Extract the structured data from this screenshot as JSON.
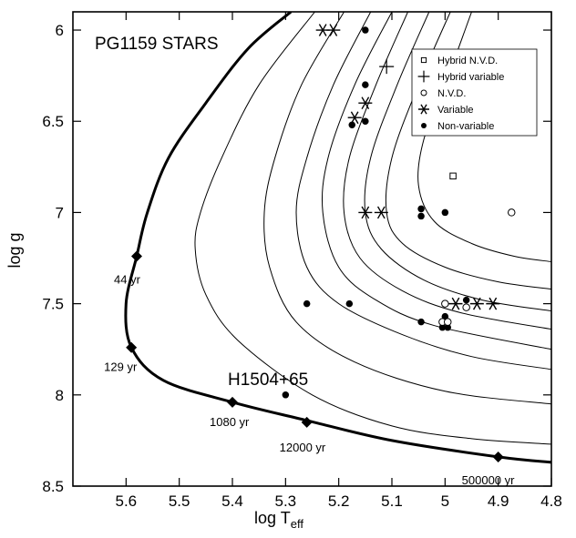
{
  "chart_data": {
    "type": "scatter",
    "title": "PG1159 STARS",
    "xlabel": "log T",
    "xlabel_sub": "eff",
    "ylabel": "log g",
    "xlim": [
      5.7,
      4.8
    ],
    "ylim": [
      5.9,
      8.5
    ],
    "x_inverted": true,
    "y_inverted": true,
    "grid": false,
    "legend_position": "top-right",
    "xticks": [
      5.6,
      5.5,
      5.4,
      5.3,
      5.2,
      5.1,
      5.0,
      4.9,
      4.8
    ],
    "xtick_labels": [
      "5.6",
      "5.5",
      "5.4",
      "5.3",
      "5.2",
      "5.1",
      "5",
      "4.9",
      "4.8"
    ],
    "yticks": [
      6.0,
      6.5,
      7.0,
      7.5,
      8.0,
      8.5
    ],
    "ytick_labels": [
      "6",
      "6.5",
      "7",
      "7.5",
      "8",
      "8.5"
    ],
    "legend": [
      {
        "label": "Hybrid N.V.D.",
        "marker": "open-square"
      },
      {
        "label": "Hybrid variable",
        "marker": "plus"
      },
      {
        "label": "N.V.D.",
        "marker": "open-circle"
      },
      {
        "label": "Variable",
        "marker": "asterisk"
      },
      {
        "label": "Non-variable",
        "marker": "filled-circle"
      }
    ],
    "series": [
      {
        "marker": "filled-circle",
        "points": [
          [
            5.15,
            6.0
          ],
          [
            5.15,
            6.3
          ],
          [
            5.15,
            6.5
          ],
          [
            5.175,
            6.52
          ],
          [
            5.045,
            6.98
          ],
          [
            5.045,
            7.02
          ],
          [
            5.0,
            7.0
          ],
          [
            5.26,
            7.5
          ],
          [
            5.18,
            7.5
          ],
          [
            4.96,
            7.48
          ],
          [
            5.045,
            7.6
          ],
          [
            5.0,
            7.57
          ],
          [
            5.005,
            7.63
          ],
          [
            4.995,
            7.63
          ],
          [
            5.3,
            8.0
          ]
        ]
      },
      {
        "marker": "asterisk",
        "points": [
          [
            5.23,
            6.0
          ],
          [
            5.21,
            6.0
          ],
          [
            5.15,
            6.4
          ],
          [
            5.17,
            6.48
          ],
          [
            5.15,
            7.0
          ],
          [
            5.12,
            7.0
          ],
          [
            4.98,
            7.5
          ],
          [
            4.94,
            7.5
          ],
          [
            4.91,
            7.5
          ]
        ]
      },
      {
        "marker": "open-circle",
        "points": [
          [
            4.875,
            7.0
          ],
          [
            5.0,
            7.5
          ],
          [
            4.96,
            7.52
          ],
          [
            5.005,
            7.6
          ],
          [
            4.995,
            7.6
          ]
        ]
      },
      {
        "marker": "plus",
        "points": [
          [
            5.11,
            6.2
          ]
        ]
      },
      {
        "marker": "open-square",
        "points": [
          [
            4.985,
            6.8
          ]
        ]
      }
    ],
    "evolutionary_track": {
      "points": [
        [
          5.29,
          5.9
        ],
        [
          5.37,
          6.1
        ],
        [
          5.45,
          6.4
        ],
        [
          5.52,
          6.7
        ],
        [
          5.56,
          7.0
        ],
        [
          5.58,
          7.24
        ],
        [
          5.6,
          7.5
        ],
        [
          5.59,
          7.74
        ],
        [
          5.53,
          7.92
        ],
        [
          5.4,
          8.04
        ],
        [
          5.26,
          8.14
        ],
        [
          5.1,
          8.25
        ],
        [
          4.9,
          8.34
        ],
        [
          4.8,
          8.37
        ]
      ],
      "age_markers": [
        {
          "x": 5.58,
          "y": 7.24,
          "label": "44 yr"
        },
        {
          "x": 5.59,
          "y": 7.74,
          "label": "129 yr"
        },
        {
          "x": 5.4,
          "y": 8.04,
          "label": "1080 yr"
        },
        {
          "x": 5.26,
          "y": 8.15,
          "label": "12000 yr"
        },
        {
          "x": 4.9,
          "y": 8.34,
          "label": "500000 yr"
        }
      ]
    },
    "instability_curves": [
      [
        [
          5.245,
          5.9
        ],
        [
          5.35,
          6.3
        ],
        [
          5.42,
          6.7
        ],
        [
          5.46,
          7.0
        ],
        [
          5.47,
          7.2
        ],
        [
          5.45,
          7.45
        ],
        [
          5.39,
          7.7
        ],
        [
          5.25,
          8.0
        ],
        [
          5.1,
          8.17
        ],
        [
          4.95,
          8.24
        ],
        [
          4.8,
          8.27
        ]
      ],
      [
        [
          5.19,
          5.9
        ],
        [
          5.27,
          6.3
        ],
        [
          5.32,
          6.7
        ],
        [
          5.34,
          7.0
        ],
        [
          5.33,
          7.3
        ],
        [
          5.28,
          7.6
        ],
        [
          5.17,
          7.82
        ],
        [
          5.0,
          7.98
        ],
        [
          4.8,
          8.05
        ]
      ],
      [
        [
          5.14,
          5.9
        ],
        [
          5.21,
          6.3
        ],
        [
          5.26,
          6.7
        ],
        [
          5.28,
          7.0
        ],
        [
          5.26,
          7.3
        ],
        [
          5.2,
          7.5
        ],
        [
          5.08,
          7.67
        ],
        [
          4.95,
          7.79
        ],
        [
          4.8,
          7.86
        ]
      ],
      [
        [
          5.1,
          5.9
        ],
        [
          5.17,
          6.3
        ],
        [
          5.22,
          6.7
        ],
        [
          5.23,
          7.0
        ],
        [
          5.2,
          7.3
        ],
        [
          5.13,
          7.48
        ],
        [
          5.02,
          7.62
        ],
        [
          4.8,
          7.75
        ]
      ],
      [
        [
          5.07,
          5.9
        ],
        [
          5.13,
          6.3
        ],
        [
          5.18,
          6.7
        ],
        [
          5.19,
          7.0
        ],
        [
          5.16,
          7.25
        ],
        [
          5.08,
          7.43
        ],
        [
          4.97,
          7.55
        ],
        [
          4.8,
          7.64
        ]
      ],
      [
        [
          5.03,
          5.9
        ],
        [
          5.09,
          6.3
        ],
        [
          5.14,
          6.7
        ],
        [
          5.15,
          7.0
        ],
        [
          5.12,
          7.2
        ],
        [
          5.04,
          7.37
        ],
        [
          4.93,
          7.48
        ],
        [
          4.8,
          7.54
        ]
      ],
      [
        [
          4.99,
          5.9
        ],
        [
          5.05,
          6.3
        ],
        [
          5.1,
          6.7
        ],
        [
          5.11,
          7.0
        ],
        [
          5.08,
          7.17
        ],
        [
          5.0,
          7.3
        ],
        [
          4.9,
          7.38
        ],
        [
          4.8,
          7.42
        ]
      ],
      [
        [
          4.95,
          5.9
        ],
        [
          5.0,
          6.3
        ],
        [
          5.04,
          6.6
        ],
        [
          5.05,
          6.85
        ],
        [
          5.02,
          7.05
        ],
        [
          4.95,
          7.17
        ],
        [
          4.87,
          7.24
        ],
        [
          4.8,
          7.27
        ]
      ]
    ],
    "annotations": [
      {
        "text": "H1504+65",
        "x": 5.3,
        "y": 7.95
      }
    ]
  }
}
